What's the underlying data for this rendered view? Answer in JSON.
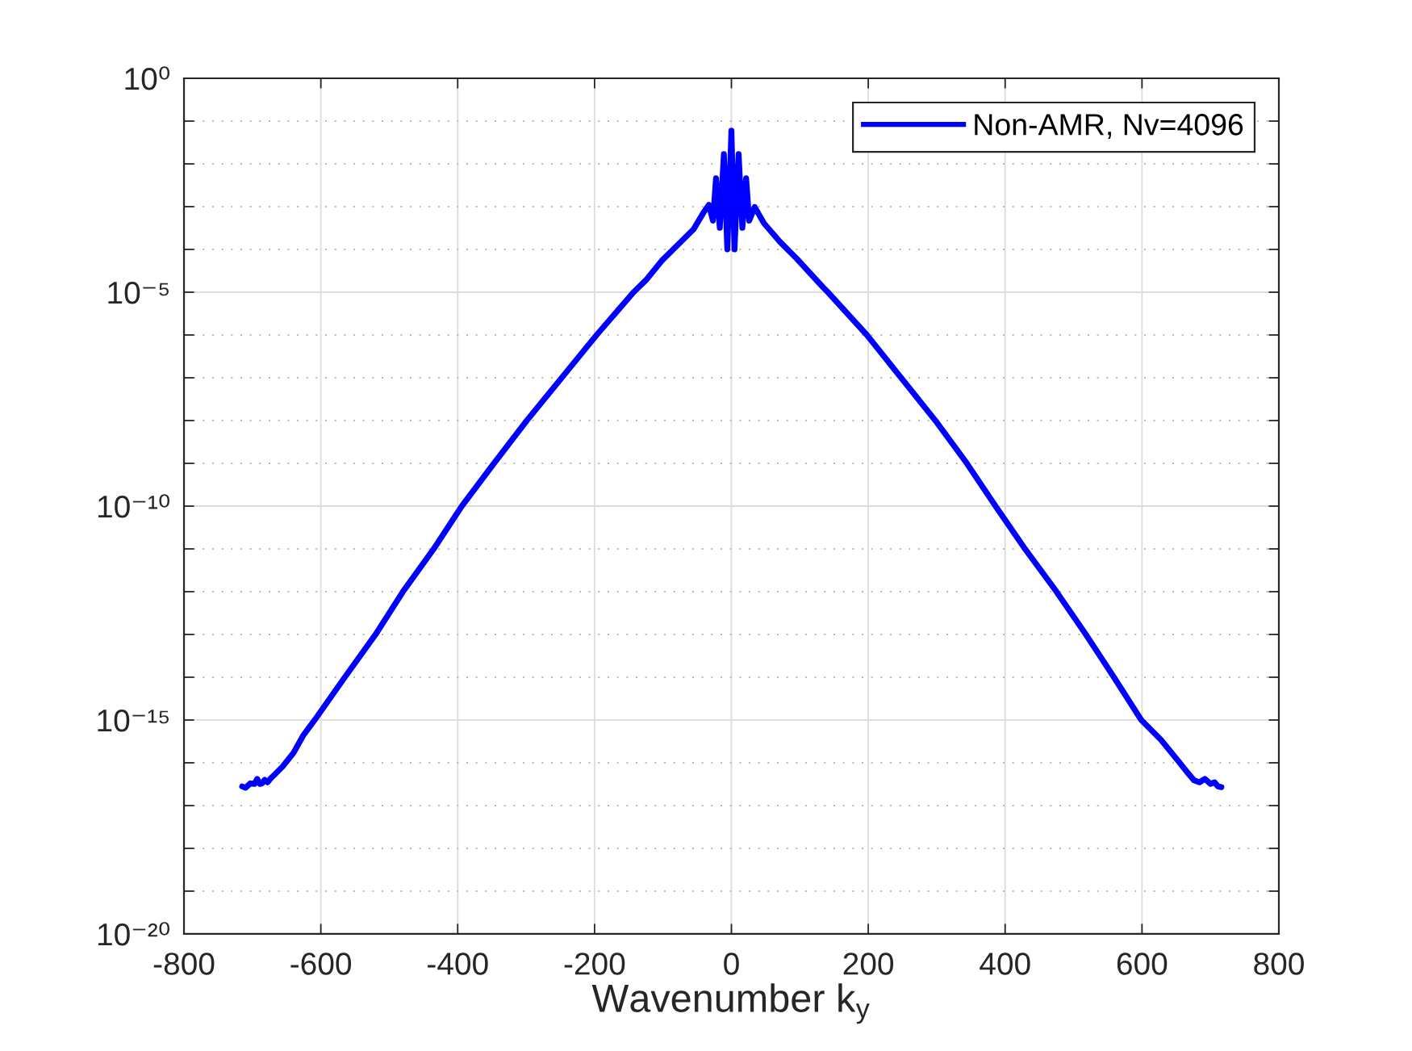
{
  "chart_data": {
    "type": "line",
    "xlabel": "Wavenumber k$_{y}$",
    "series": [
      {
        "name": "Non-AMR, Nv=4096",
        "color": "#0000ff",
        "x": [
          -715,
          -710,
          -703,
          -697,
          -693,
          -689,
          -686,
          -682,
          -678,
          -674,
          -668,
          -656,
          -640,
          -626,
          -609,
          -565,
          -520,
          -480,
          -435,
          -394,
          -347,
          -299,
          -248,
          -197,
          -143,
          -125,
          -102,
          -78,
          -55,
          -41,
          -33,
          -27,
          -22.5,
          -17,
          -11,
          -6,
          0,
          4.5,
          10.5,
          16,
          21.5,
          26,
          34,
          47.5,
          71,
          95,
          134,
          141,
          198,
          248,
          298,
          344,
          386,
          429,
          475,
          518,
          559,
          599,
          628,
          653,
          665,
          676,
          684,
          692,
          700,
          706,
          711,
          716
        ],
        "values": [
          2.8e-17,
          2.6e-17,
          3.3e-17,
          3.2e-17,
          4.2e-17,
          3.2e-17,
          3.3e-17,
          4e-17,
          3.5e-17,
          4.2e-17,
          5.2e-17,
          8.1e-17,
          1.7e-16,
          4.3e-16,
          1e-15,
          1e-14,
          1e-13,
          1e-12,
          1e-11,
          1e-10,
          1e-09,
          1e-08,
          1e-07,
          1e-06,
          1e-05,
          1.9e-05,
          5.4e-05,
          0.00013,
          0.0003,
          0.00072,
          0.0011,
          0.00047,
          0.0046,
          0.00032,
          0.017,
          0.0001,
          0.06,
          0.0001,
          0.017,
          0.00032,
          0.0046,
          0.00047,
          0.00098,
          0.00041,
          0.00015,
          6.2e-05,
          1.3e-05,
          1e-05,
          1e-06,
          1e-07,
          1e-08,
          1e-09,
          1e-10,
          1e-11,
          1e-12,
          1e-13,
          1e-14,
          1e-15,
          3.4e-16,
          1.1e-16,
          6.3e-17,
          3.9e-17,
          3.5e-17,
          4.2e-17,
          3.2e-17,
          3.5e-17,
          2.8e-17,
          2.7e-17
        ]
      }
    ],
    "xlim": [
      -800,
      800
    ],
    "xticks": [
      -800,
      -600,
      -400,
      -200,
      0,
      200,
      400,
      600,
      800
    ],
    "ylim": [
      1e-20,
      1
    ],
    "yticks": [
      {
        "value": 1,
        "label": "10⁰"
      },
      {
        "value": 0.1,
        "label": null
      },
      {
        "value": 0.01,
        "label": null
      },
      {
        "value": 0.001,
        "label": null
      },
      {
        "value": 0.0001,
        "label": null
      },
      {
        "value": 1e-05,
        "label": "10⁻⁵"
      },
      {
        "value": 1e-06,
        "label": null
      },
      {
        "value": 1e-07,
        "label": null
      },
      {
        "value": 1e-08,
        "label": null
      },
      {
        "value": 1e-09,
        "label": null
      },
      {
        "value": 1e-10,
        "label": "10⁻¹⁰"
      },
      {
        "value": 1e-11,
        "label": null
      },
      {
        "value": 1e-12,
        "label": null
      },
      {
        "value": 1e-13,
        "label": null
      },
      {
        "value": 1e-14,
        "label": null
      },
      {
        "value": 1e-15,
        "label": "10⁻¹⁵"
      },
      {
        "value": 1e-16,
        "label": null
      },
      {
        "value": 1e-17,
        "label": null
      },
      {
        "value": 1e-18,
        "label": null
      },
      {
        "value": 1e-19,
        "label": null
      },
      {
        "value": 1e-20,
        "label": "10⁻²⁰"
      }
    ],
    "log": "y",
    "grid": true,
    "legend": "top right",
    "marker": "none",
    "line_style": "solid"
  }
}
